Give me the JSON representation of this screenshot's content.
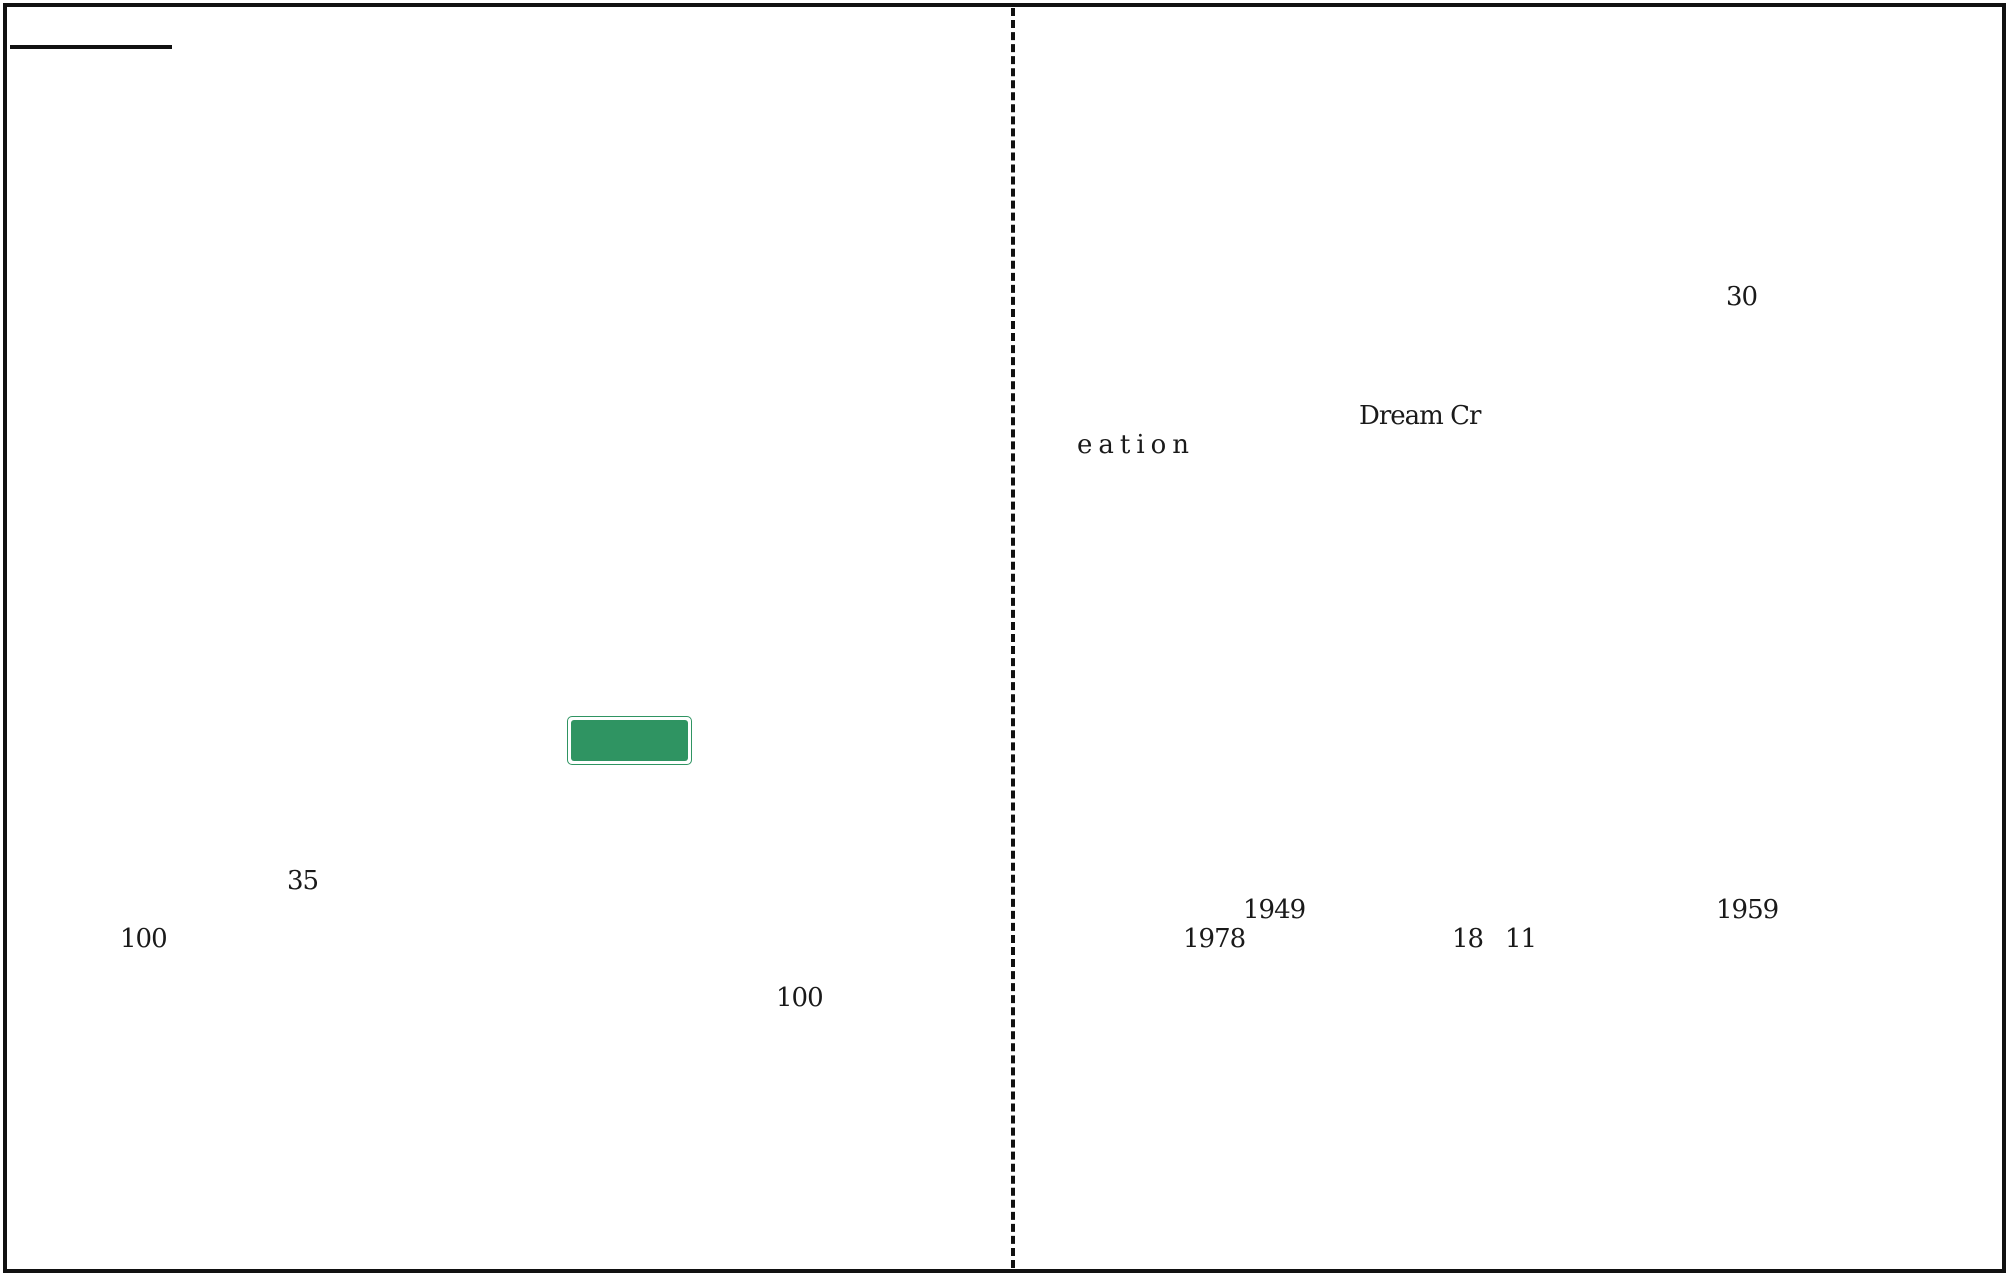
{
  "left_page": {
    "num_35": "35",
    "num_100_a": "100",
    "num_100_b": "100"
  },
  "right_page": {
    "num_30": "30",
    "dream_a": "Dream Cr",
    "dream_b": "eation",
    "year_1949": "1949",
    "year_1959": "1959",
    "year_1978": "1978",
    "num_18": "18",
    "num_11": "11"
  },
  "colors": {
    "label_green": "#2f9462"
  }
}
